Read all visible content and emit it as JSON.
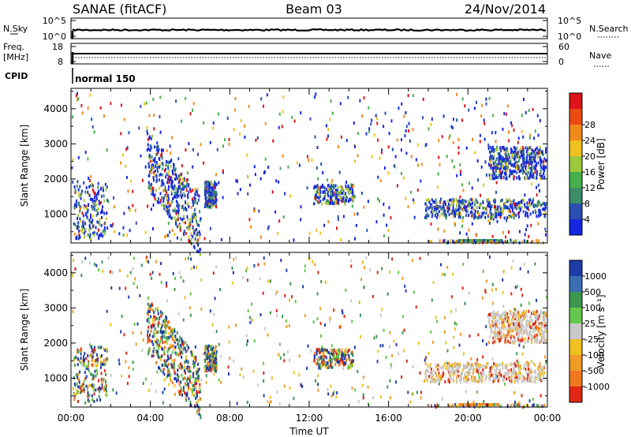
{
  "header": {
    "radar": "SANAE (fitACF)",
    "beam": "Beam 03",
    "date": "24/Nov/2014"
  },
  "status_panels": {
    "noise": {
      "left_label": "N.Sky",
      "left_ticks": [
        "10^5",
        "10^0"
      ],
      "right_label": "N.Search",
      "right_ticks": [
        "10^5",
        "10^0"
      ]
    },
    "freq": {
      "left_label": "Freq.",
      "left_unit": "[MHz]",
      "left_ticks": [
        "18",
        "8"
      ],
      "right_label": "Nave",
      "right_ticks": [
        "60",
        "0"
      ]
    },
    "cpid": {
      "label": "CPID",
      "value": "normal 150"
    }
  },
  "chart_data": [
    {
      "type": "heatmap",
      "panel": "power",
      "ylabel": "Slant Range [km]",
      "yticks": [
        1000,
        2000,
        3000,
        4000
      ],
      "ylim": [
        180,
        4580
      ],
      "xlim": [
        0,
        24
      ],
      "colorbar": {
        "label": "Power [dB]",
        "ticks": [
          "4",
          "8",
          "12",
          "16",
          "20",
          "24",
          "28"
        ],
        "colors": [
          "#1428e0",
          "#2a4fb0",
          "#3b8d6a",
          "#46b04c",
          "#9ec83c",
          "#f0c020",
          "#f08a1c",
          "#ee4a14",
          "#dc141a"
        ]
      },
      "echo_regions": [
        {
          "t_start": 0.1,
          "t_end": 1.8,
          "range_low": 500,
          "range_high": 2300,
          "density": "medium"
        },
        {
          "t_start": 3.8,
          "t_end": 6.5,
          "range_low": 700,
          "range_high": 2600,
          "density": "high"
        },
        {
          "t_start": 6.7,
          "t_end": 7.3,
          "range_low": 1200,
          "range_high": 2000,
          "density": "medium"
        },
        {
          "t_start": 12.2,
          "t_end": 14.2,
          "range_low": 1300,
          "range_high": 1900,
          "density": "medium"
        },
        {
          "t_start": 17.8,
          "t_end": 23.9,
          "range_low": 900,
          "range_high": 1500,
          "density": "high"
        },
        {
          "t_start": 21.0,
          "t_end": 23.9,
          "range_low": 2000,
          "range_high": 3000,
          "density": "high"
        }
      ]
    },
    {
      "type": "heatmap",
      "panel": "velocity",
      "ylabel": "Slant Range [km]",
      "yticks": [
        1000,
        2000,
        3000,
        4000
      ],
      "ylim": [
        180,
        4580
      ],
      "xlim": [
        0,
        24
      ],
      "xlabel": "Time UT",
      "xticks": [
        "00:00",
        "04:00",
        "08:00",
        "12:00",
        "16:00",
        "20:00",
        "00:00"
      ],
      "colorbar": {
        "label": "Velocity [m s⁻¹]",
        "ticks": [
          "1000",
          "500",
          "100",
          "25",
          "-25",
          "-100",
          "-500",
          "-1000"
        ],
        "colors": [
          "#1e3ca8",
          "#3c6eb4",
          "#3c9650",
          "#64c84a",
          "#c8c8c8",
          "#f0c020",
          "#f09a28",
          "#f07820",
          "#e02814"
        ]
      },
      "echo_regions": [
        {
          "t_start": 0.1,
          "t_end": 1.8,
          "range_low": 500,
          "range_high": 2300,
          "density": "medium"
        },
        {
          "t_start": 3.8,
          "t_end": 6.5,
          "range_low": 700,
          "range_high": 2600,
          "density": "high"
        },
        {
          "t_start": 6.7,
          "t_end": 7.3,
          "range_low": 1200,
          "range_high": 2000,
          "density": "medium"
        },
        {
          "t_start": 12.2,
          "t_end": 14.2,
          "range_low": 1300,
          "range_high": 1900,
          "density": "medium"
        },
        {
          "t_start": 17.8,
          "t_end": 23.9,
          "range_low": 900,
          "range_high": 1500,
          "density": "high"
        },
        {
          "t_start": 21.0,
          "t_end": 23.9,
          "range_low": 2000,
          "range_high": 3000,
          "density": "high"
        }
      ]
    }
  ]
}
